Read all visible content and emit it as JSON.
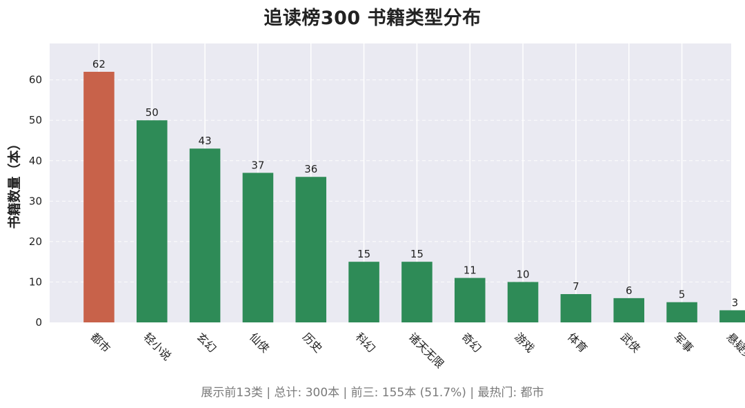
{
  "chart_data": {
    "type": "bar",
    "title": "追读榜300 书籍类型分布",
    "xlabel": "",
    "ylabel": "书籍数量（本）",
    "categories": [
      "都市",
      "轻小说",
      "玄幻",
      "仙侠",
      "历史",
      "科幻",
      "诸天无限",
      "奇幻",
      "游戏",
      "体育",
      "武侠",
      "军事",
      "悬疑灵异"
    ],
    "values": [
      62,
      50,
      43,
      37,
      36,
      15,
      15,
      11,
      10,
      7,
      6,
      5,
      3
    ],
    "ylim": [
      0,
      69
    ],
    "yticks": [
      0,
      10,
      20,
      30,
      40,
      50,
      60
    ],
    "highlight_index": 0,
    "grid": true,
    "colors": {
      "highlight": "#C8624A",
      "bar": "#2E8B57",
      "plot_background": "#EAEAF2",
      "grid": "#FFFFFF"
    }
  },
  "footer": "展示前13类 | 总计: 300本 | 前三: 155本 (51.7%) | 最热门: 都市"
}
